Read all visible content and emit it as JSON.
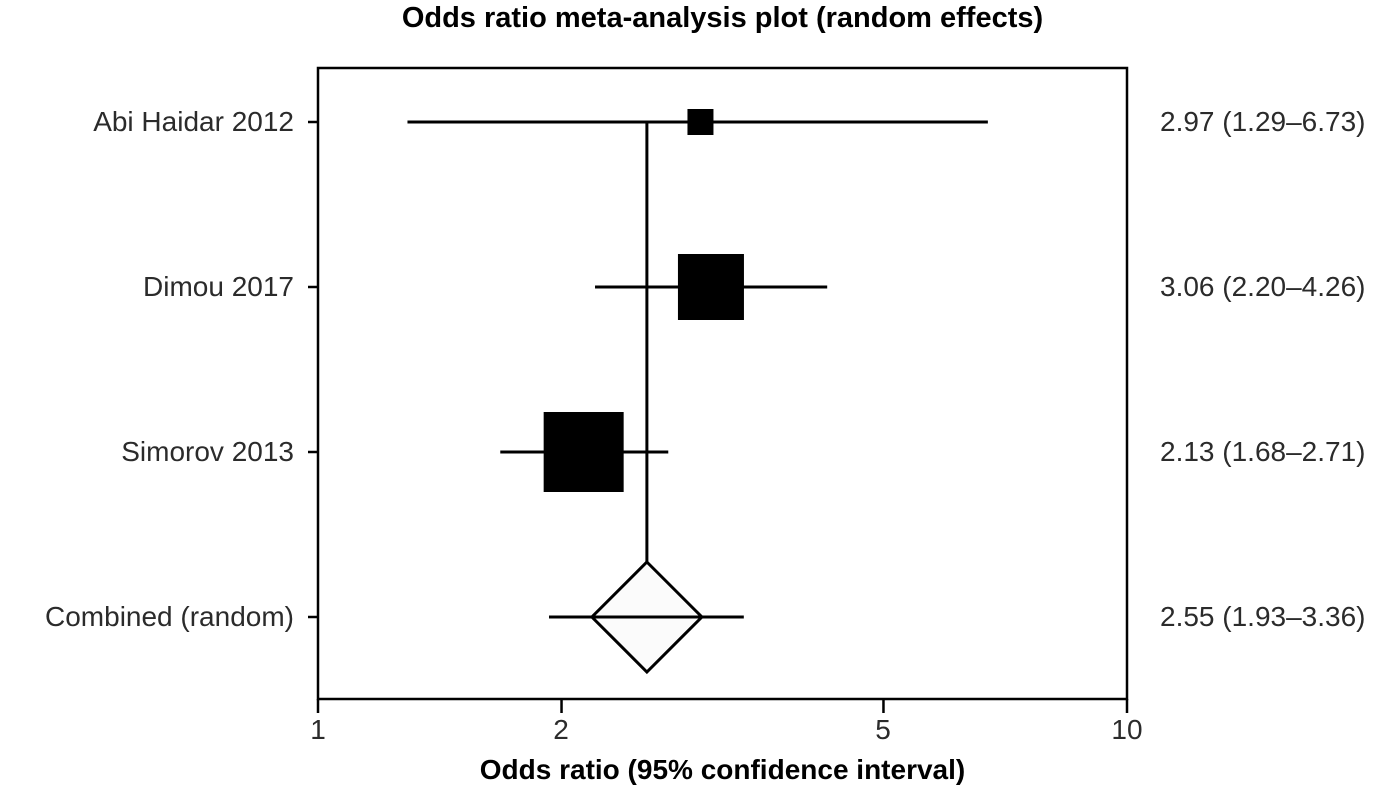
{
  "figure": {
    "title": "Odds ratio meta-analysis plot (random effects)",
    "x_axis_label": "Odds ratio (95% confidence interval)"
  },
  "chart_data": {
    "type": "forest",
    "title": "Odds ratio meta-analysis plot (random effects)",
    "xlabel": "Odds ratio (95% confidence interval)",
    "x_scale": "log10",
    "xlim": [
      1,
      10
    ],
    "x_ticks": [
      1,
      2,
      5,
      10
    ],
    "x_tick_labels": [
      "1",
      "2",
      "5",
      "10"
    ],
    "grid": false,
    "pooled_reference_line_at": 2.55,
    "studies": [
      {
        "label": "Abi Haidar 2012",
        "or": 2.97,
        "ci_low": 1.29,
        "ci_high": 6.73,
        "display": "2.97 (1.29–6.73)",
        "marker": "square",
        "marker_size_px": 26
      },
      {
        "label": "Dimou 2017",
        "or": 3.06,
        "ci_low": 2.2,
        "ci_high": 4.26,
        "display": "3.06 (2.20–4.26)",
        "marker": "square",
        "marker_size_px": 66
      },
      {
        "label": "Simorov 2013",
        "or": 2.13,
        "ci_low": 1.68,
        "ci_high": 2.71,
        "display": "2.13 (1.68–2.71)",
        "marker": "square",
        "marker_size_px": 80
      },
      {
        "label": "Combined (random)",
        "or": 2.55,
        "ci_low": 1.93,
        "ci_high": 3.36,
        "display": "2.55 (1.93–3.36)",
        "marker": "diamond",
        "marker_size_px": 110
      }
    ],
    "colors": {
      "marker_fill": "#000000",
      "diamond_fill": "#fbfbfb",
      "line": "#000000",
      "frame": "#000000",
      "text": "#2b2b2b"
    }
  }
}
